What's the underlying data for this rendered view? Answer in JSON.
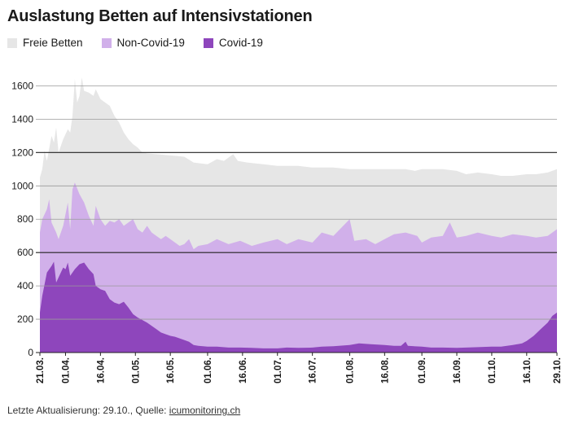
{
  "title": "Auslastung Betten auf Intensivstationen",
  "footer": {
    "prefix": "Letzte Aktualisierung: 29.10., Quelle: ",
    "source": "icumonitoring.ch"
  },
  "colors": {
    "free": "#e6e6e6",
    "non_covid": "#d1b0ea",
    "covid": "#8e46bc",
    "grid": "#9a9a9a",
    "grid_strong": "#222222",
    "text": "#1a1a1a"
  },
  "chart_data": {
    "type": "area",
    "stacked": true,
    "title": "Auslastung Betten auf Intensivstationen",
    "xlabel": "",
    "ylabel": "",
    "ylim": [
      0,
      1700
    ],
    "yticks": [
      0,
      200,
      400,
      600,
      800,
      1000,
      1200,
      1400,
      1600
    ],
    "strong_gridlines": [
      600,
      1200
    ],
    "legend": [
      "Freie Betten",
      "Non-Covid-19",
      "Covid-19"
    ],
    "legend_position": "top-left",
    "x_start": "2020-03-21",
    "x_end": "2020-10-29",
    "xticks": [
      "21.03.",
      "01.04.",
      "16.04.",
      "01.05.",
      "16.05.",
      "01.06.",
      "16.06.",
      "01.07.",
      "16.07.",
      "01.08.",
      "16.08.",
      "01.09.",
      "16.09.",
      "01.10.",
      "16.10.",
      "29.10."
    ],
    "xtick_dates": [
      "2020-03-21",
      "2020-04-01",
      "2020-04-16",
      "2020-05-01",
      "2020-05-16",
      "2020-06-01",
      "2020-06-16",
      "2020-07-01",
      "2020-07-16",
      "2020-08-01",
      "2020-08-16",
      "2020-09-01",
      "2020-09-16",
      "2020-10-01",
      "2020-10-16",
      "2020-10-29"
    ],
    "series": [
      {
        "name": "Covid-19",
        "points": [
          [
            "2020-03-21",
            240
          ],
          [
            "2020-03-22",
            340
          ],
          [
            "2020-03-24",
            480
          ],
          [
            "2020-03-26",
            520
          ],
          [
            "2020-03-27",
            545
          ],
          [
            "2020-03-28",
            420
          ],
          [
            "2020-03-30",
            480
          ],
          [
            "2020-03-31",
            510
          ],
          [
            "2020-04-01",
            500
          ],
          [
            "2020-04-02",
            540
          ],
          [
            "2020-04-03",
            460
          ],
          [
            "2020-04-05",
            500
          ],
          [
            "2020-04-07",
            530
          ],
          [
            "2020-04-09",
            540
          ],
          [
            "2020-04-11",
            500
          ],
          [
            "2020-04-13",
            470
          ],
          [
            "2020-04-14",
            400
          ],
          [
            "2020-04-16",
            380
          ],
          [
            "2020-04-18",
            370
          ],
          [
            "2020-04-20",
            320
          ],
          [
            "2020-04-22",
            300
          ],
          [
            "2020-04-24",
            290
          ],
          [
            "2020-04-26",
            305
          ],
          [
            "2020-04-28",
            270
          ],
          [
            "2020-04-30",
            230
          ],
          [
            "2020-05-02",
            210
          ],
          [
            "2020-05-04",
            195
          ],
          [
            "2020-05-06",
            180
          ],
          [
            "2020-05-08",
            160
          ],
          [
            "2020-05-10",
            140
          ],
          [
            "2020-05-12",
            120
          ],
          [
            "2020-05-14",
            110
          ],
          [
            "2020-05-16",
            100
          ],
          [
            "2020-05-18",
            95
          ],
          [
            "2020-05-20",
            85
          ],
          [
            "2020-05-22",
            75
          ],
          [
            "2020-05-24",
            65
          ],
          [
            "2020-05-26",
            45
          ],
          [
            "2020-05-28",
            40
          ],
          [
            "2020-06-01",
            35
          ],
          [
            "2020-06-05",
            35
          ],
          [
            "2020-06-10",
            30
          ],
          [
            "2020-06-15",
            30
          ],
          [
            "2020-06-20",
            28
          ],
          [
            "2020-06-25",
            25
          ],
          [
            "2020-07-01",
            25
          ],
          [
            "2020-07-05",
            30
          ],
          [
            "2020-07-10",
            28
          ],
          [
            "2020-07-16",
            30
          ],
          [
            "2020-07-20",
            35
          ],
          [
            "2020-07-25",
            38
          ],
          [
            "2020-08-01",
            45
          ],
          [
            "2020-08-05",
            55
          ],
          [
            "2020-08-10",
            50
          ],
          [
            "2020-08-16",
            45
          ],
          [
            "2020-08-20",
            40
          ],
          [
            "2020-08-23",
            40
          ],
          [
            "2020-08-25",
            65
          ],
          [
            "2020-08-26",
            40
          ],
          [
            "2020-09-01",
            35
          ],
          [
            "2020-09-05",
            30
          ],
          [
            "2020-09-10",
            30
          ],
          [
            "2020-09-16",
            28
          ],
          [
            "2020-09-20",
            30
          ],
          [
            "2020-09-25",
            32
          ],
          [
            "2020-10-01",
            35
          ],
          [
            "2020-10-05",
            35
          ],
          [
            "2020-10-10",
            45
          ],
          [
            "2020-10-14",
            55
          ],
          [
            "2020-10-16",
            70
          ],
          [
            "2020-10-19",
            100
          ],
          [
            "2020-10-22",
            140
          ],
          [
            "2020-10-25",
            180
          ],
          [
            "2020-10-27",
            220
          ],
          [
            "2020-10-29",
            240
          ]
        ]
      },
      {
        "name": "Non-Covid-19",
        "points": [
          [
            "2020-03-21",
            720
          ],
          [
            "2020-03-22",
            800
          ],
          [
            "2020-03-24",
            860
          ],
          [
            "2020-03-25",
            920
          ],
          [
            "2020-03-26",
            780
          ],
          [
            "2020-03-28",
            720
          ],
          [
            "2020-03-29",
            680
          ],
          [
            "2020-03-31",
            760
          ],
          [
            "2020-04-02",
            900
          ],
          [
            "2020-04-03",
            740
          ],
          [
            "2020-04-04",
            980
          ],
          [
            "2020-04-05",
            1020
          ],
          [
            "2020-04-07",
            950
          ],
          [
            "2020-04-09",
            900
          ],
          [
            "2020-04-11",
            820
          ],
          [
            "2020-04-13",
            760
          ],
          [
            "2020-04-14",
            880
          ],
          [
            "2020-04-16",
            800
          ],
          [
            "2020-04-18",
            760
          ],
          [
            "2020-04-20",
            790
          ],
          [
            "2020-04-22",
            780
          ],
          [
            "2020-04-24",
            800
          ],
          [
            "2020-04-26",
            760
          ],
          [
            "2020-04-28",
            780
          ],
          [
            "2020-04-30",
            800
          ],
          [
            "2020-05-02",
            740
          ],
          [
            "2020-05-04",
            720
          ],
          [
            "2020-05-06",
            760
          ],
          [
            "2020-05-08",
            720
          ],
          [
            "2020-05-10",
            700
          ],
          [
            "2020-05-12",
            680
          ],
          [
            "2020-05-14",
            700
          ],
          [
            "2020-05-16",
            680
          ],
          [
            "2020-05-18",
            660
          ],
          [
            "2020-05-20",
            640
          ],
          [
            "2020-05-22",
            650
          ],
          [
            "2020-05-24",
            680
          ],
          [
            "2020-05-26",
            620
          ],
          [
            "2020-05-28",
            640
          ],
          [
            "2020-06-01",
            650
          ],
          [
            "2020-06-05",
            680
          ],
          [
            "2020-06-10",
            650
          ],
          [
            "2020-06-15",
            670
          ],
          [
            "2020-06-20",
            640
          ],
          [
            "2020-06-25",
            660
          ],
          [
            "2020-07-01",
            680
          ],
          [
            "2020-07-05",
            650
          ],
          [
            "2020-07-10",
            680
          ],
          [
            "2020-07-16",
            660
          ],
          [
            "2020-07-20",
            720
          ],
          [
            "2020-07-25",
            700
          ],
          [
            "2020-08-01",
            800
          ],
          [
            "2020-08-03",
            670
          ],
          [
            "2020-08-08",
            680
          ],
          [
            "2020-08-12",
            650
          ],
          [
            "2020-08-16",
            680
          ],
          [
            "2020-08-20",
            710
          ],
          [
            "2020-08-25",
            720
          ],
          [
            "2020-08-30",
            700
          ],
          [
            "2020-09-01",
            660
          ],
          [
            "2020-09-05",
            690
          ],
          [
            "2020-09-10",
            700
          ],
          [
            "2020-09-13",
            780
          ],
          [
            "2020-09-16",
            690
          ],
          [
            "2020-09-20",
            700
          ],
          [
            "2020-09-25",
            720
          ],
          [
            "2020-10-01",
            700
          ],
          [
            "2020-10-05",
            690
          ],
          [
            "2020-10-10",
            710
          ],
          [
            "2020-10-16",
            700
          ],
          [
            "2020-10-20",
            690
          ],
          [
            "2020-10-25",
            700
          ],
          [
            "2020-10-29",
            740
          ]
        ]
      },
      {
        "name": "Freie Betten",
        "points": [
          [
            "2020-03-21",
            1050
          ],
          [
            "2020-03-22",
            1100
          ],
          [
            "2020-03-23",
            1210
          ],
          [
            "2020-03-24",
            1150
          ],
          [
            "2020-03-26",
            1300
          ],
          [
            "2020-03-27",
            1260
          ],
          [
            "2020-03-28",
            1350
          ],
          [
            "2020-03-29",
            1200
          ],
          [
            "2020-03-31",
            1280
          ],
          [
            "2020-04-02",
            1340
          ],
          [
            "2020-04-03",
            1320
          ],
          [
            "2020-04-04",
            1420
          ],
          [
            "2020-04-05",
            1640
          ],
          [
            "2020-04-06",
            1500
          ],
          [
            "2020-04-07",
            1540
          ],
          [
            "2020-04-08",
            1650
          ],
          [
            "2020-04-09",
            1570
          ],
          [
            "2020-04-11",
            1560
          ],
          [
            "2020-04-13",
            1540
          ],
          [
            "2020-04-14",
            1580
          ],
          [
            "2020-04-16",
            1520
          ],
          [
            "2020-04-18",
            1500
          ],
          [
            "2020-04-20",
            1480
          ],
          [
            "2020-04-22",
            1420
          ],
          [
            "2020-04-24",
            1380
          ],
          [
            "2020-04-26",
            1320
          ],
          [
            "2020-04-28",
            1280
          ],
          [
            "2020-04-30",
            1250
          ],
          [
            "2020-05-02",
            1230
          ],
          [
            "2020-05-04",
            1200
          ],
          [
            "2020-05-06",
            1195
          ],
          [
            "2020-05-10",
            1190
          ],
          [
            "2020-05-14",
            1185
          ],
          [
            "2020-05-18",
            1180
          ],
          [
            "2020-05-22",
            1175
          ],
          [
            "2020-05-26",
            1140
          ],
          [
            "2020-06-01",
            1130
          ],
          [
            "2020-06-05",
            1160
          ],
          [
            "2020-06-08",
            1150
          ],
          [
            "2020-06-12",
            1190
          ],
          [
            "2020-06-14",
            1150
          ],
          [
            "2020-06-18",
            1140
          ],
          [
            "2020-06-25",
            1130
          ],
          [
            "2020-07-01",
            1120
          ],
          [
            "2020-07-10",
            1120
          ],
          [
            "2020-07-16",
            1110
          ],
          [
            "2020-07-20",
            1110
          ],
          [
            "2020-07-25",
            1110
          ],
          [
            "2020-08-01",
            1100
          ],
          [
            "2020-08-10",
            1100
          ],
          [
            "2020-08-16",
            1100
          ],
          [
            "2020-08-25",
            1100
          ],
          [
            "2020-08-29",
            1090
          ],
          [
            "2020-09-01",
            1100
          ],
          [
            "2020-09-05",
            1100
          ],
          [
            "2020-09-10",
            1100
          ],
          [
            "2020-09-16",
            1090
          ],
          [
            "2020-09-20",
            1070
          ],
          [
            "2020-09-25",
            1080
          ],
          [
            "2020-10-01",
            1070
          ],
          [
            "2020-10-05",
            1060
          ],
          [
            "2020-10-10",
            1060
          ],
          [
            "2020-10-16",
            1070
          ],
          [
            "2020-10-20",
            1070
          ],
          [
            "2020-10-25",
            1080
          ],
          [
            "2020-10-29",
            1100
          ]
        ]
      }
    ]
  }
}
